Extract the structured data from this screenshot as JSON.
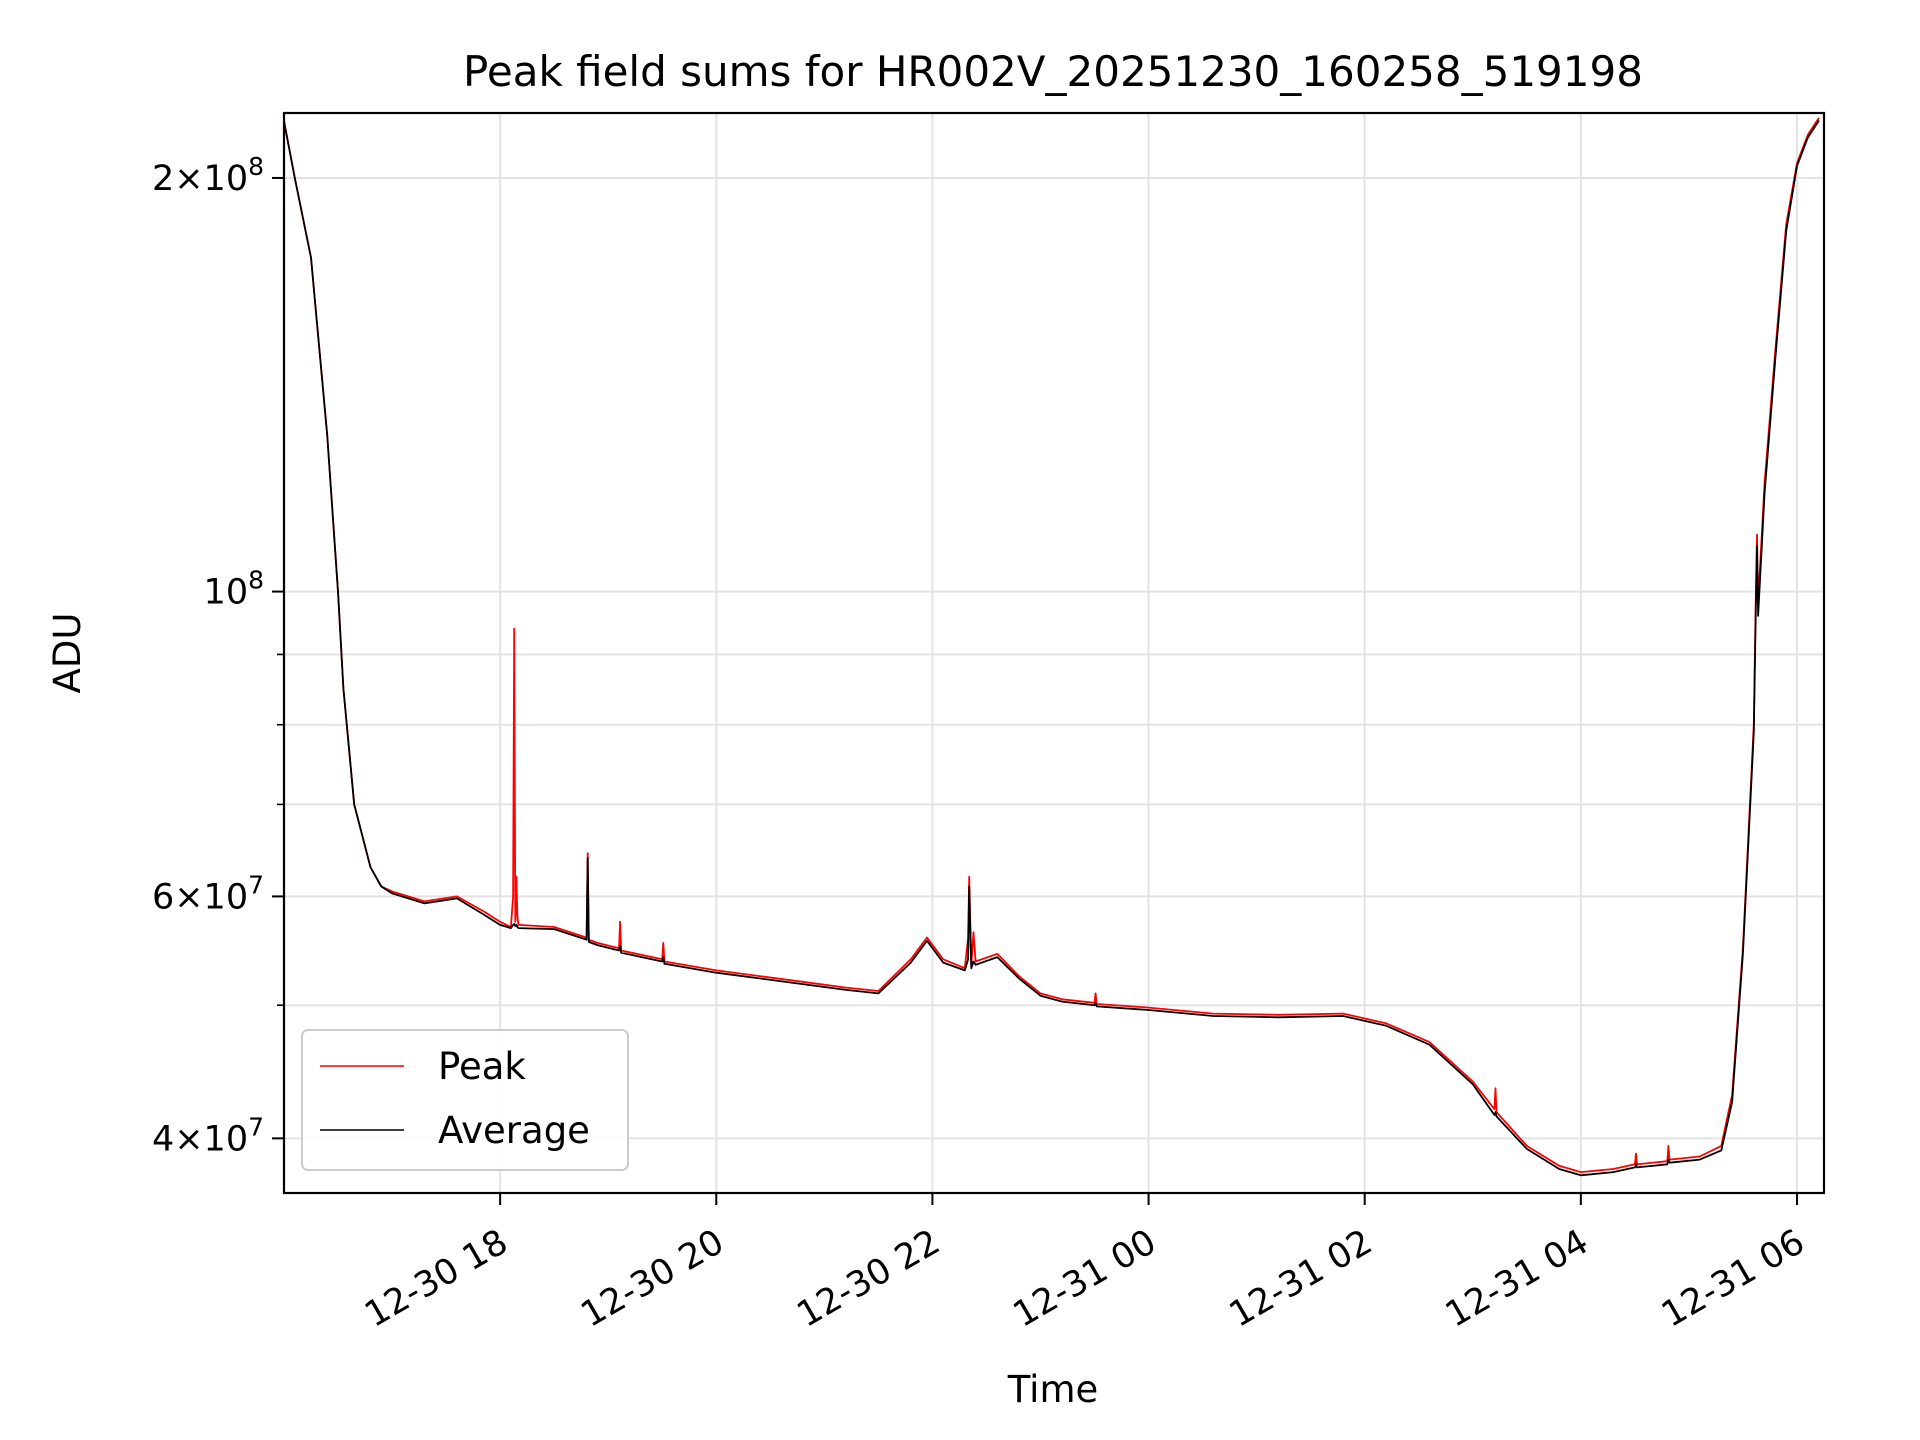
{
  "chart_data": {
    "type": "line",
    "title": "Peak field sums for HR002V_20251230_160258_519198",
    "xlabel": "Time",
    "ylabel": "ADU",
    "yscale": "log",
    "xlim": [
      16.0,
      30.25
    ],
    "ylim": [
      36500000,
      223000000
    ],
    "grid": true,
    "legend_loc": "lower-left",
    "x_ticks": [
      {
        "value": 18,
        "label": "12-30 18"
      },
      {
        "value": 20,
        "label": "12-30 20"
      },
      {
        "value": 22,
        "label": "12-30 22"
      },
      {
        "value": 24,
        "label": "12-31 00"
      },
      {
        "value": 26,
        "label": "12-31 02"
      },
      {
        "value": 28,
        "label": "12-31 04"
      },
      {
        "value": 30,
        "label": "12-31 06"
      }
    ],
    "y_ticks": [
      {
        "value": 40000000,
        "base": "4",
        "mult": "×",
        "exp_base": "10",
        "exp": "7"
      },
      {
        "value": 60000000,
        "base": "6",
        "mult": "×",
        "exp_base": "10",
        "exp": "7"
      },
      {
        "value": 100000000,
        "base": "",
        "mult": "",
        "exp_base": "10",
        "exp": "8"
      },
      {
        "value": 200000000,
        "base": "2",
        "mult": "×",
        "exp_base": "10",
        "exp": "8"
      }
    ],
    "y_minor_ticks": [
      50000000,
      70000000,
      80000000,
      90000000
    ],
    "series": [
      {
        "name": "Peak",
        "color": "#ff0000",
        "x": [
          16.0,
          16.1,
          16.25,
          16.4,
          16.5,
          16.55,
          16.65,
          16.8,
          16.9,
          17.0,
          17.3,
          17.6,
          17.85,
          18.0,
          18.1,
          18.12,
          18.13,
          18.14,
          18.15,
          18.16,
          18.17,
          18.5,
          18.8,
          18.81,
          18.82,
          18.9,
          19.1,
          19.11,
          19.12,
          19.5,
          19.51,
          19.52,
          20.0,
          20.4,
          20.8,
          21.2,
          21.5,
          21.8,
          21.95,
          22.1,
          22.3,
          22.33,
          22.34,
          22.36,
          22.38,
          22.4,
          22.6,
          22.8,
          23.0,
          23.2,
          23.5,
          23.51,
          23.52,
          24.0,
          24.6,
          25.2,
          25.8,
          26.2,
          26.6,
          27.0,
          27.2,
          27.21,
          27.22,
          27.5,
          27.8,
          28.0,
          28.3,
          28.5,
          28.51,
          28.52,
          28.8,
          28.81,
          28.82,
          29.1,
          29.3,
          29.4,
          29.5,
          29.6,
          29.62,
          29.63,
          29.64,
          29.7,
          29.8,
          29.9,
          30.0,
          30.1,
          30.2
        ],
        "y": [
          220000000,
          200000000,
          175000000,
          130000000,
          100000000,
          85000000,
          70000000,
          63000000,
          61000000,
          60500000,
          59500000,
          60000000,
          58500000,
          57500000,
          57000000,
          60000000,
          94000000,
          57500000,
          62000000,
          58000000,
          57200000,
          57000000,
          56000000,
          64500000,
          55800000,
          55500000,
          55000000,
          57500000,
          54800000,
          54000000,
          55500000,
          53800000,
          53000000,
          52500000,
          52000000,
          51500000,
          51200000,
          54000000,
          56000000,
          54000000,
          53200000,
          56000000,
          62000000,
          53500000,
          56500000,
          53800000,
          54500000,
          52500000,
          51000000,
          50500000,
          50200000,
          51000000,
          50100000,
          49800000,
          49300000,
          49200000,
          49300000,
          48500000,
          47000000,
          44000000,
          42000000,
          43500000,
          41800000,
          39500000,
          38200000,
          37800000,
          38000000,
          38300000,
          39000000,
          38300000,
          38500000,
          39500000,
          38600000,
          38800000,
          39500000,
          43000000,
          55000000,
          80000000,
          100000000,
          110000000,
          98000000,
          120000000,
          150000000,
          185000000,
          205000000,
          215000000,
          221000000
        ]
      },
      {
        "name": "Average",
        "color": "#000000",
        "x": [
          16.0,
          16.1,
          16.25,
          16.4,
          16.5,
          16.55,
          16.65,
          16.8,
          16.9,
          17.0,
          17.3,
          17.6,
          17.85,
          18.0,
          18.1,
          18.12,
          18.13,
          18.14,
          18.15,
          18.16,
          18.17,
          18.5,
          18.8,
          18.81,
          18.82,
          18.9,
          19.1,
          19.11,
          19.12,
          19.5,
          19.51,
          19.52,
          20.0,
          20.4,
          20.8,
          21.2,
          21.5,
          21.8,
          21.95,
          22.1,
          22.3,
          22.33,
          22.34,
          22.36,
          22.38,
          22.4,
          22.6,
          22.8,
          23.0,
          23.2,
          23.5,
          23.51,
          23.52,
          24.0,
          24.6,
          25.2,
          25.8,
          26.2,
          26.6,
          27.0,
          27.2,
          27.21,
          27.22,
          27.5,
          27.8,
          28.0,
          28.3,
          28.5,
          28.51,
          28.52,
          28.8,
          28.81,
          28.82,
          29.1,
          29.3,
          29.4,
          29.5,
          29.6,
          29.62,
          29.63,
          29.64,
          29.7,
          29.8,
          29.9,
          30.0,
          30.1,
          30.2
        ],
        "y": [
          220000000,
          200000000,
          175000000,
          130000000,
          100000000,
          85000000,
          70000000,
          63000000,
          61000000,
          60300000,
          59300000,
          59800000,
          58200000,
          57200000,
          56900000,
          57200000,
          57300000,
          57100000,
          57200000,
          57000000,
          56900000,
          56800000,
          55800000,
          64000000,
          55600000,
          55300000,
          54800000,
          55200000,
          54600000,
          53800000,
          54200000,
          53600000,
          52800000,
          52300000,
          51800000,
          51300000,
          51000000,
          53700000,
          55700000,
          53700000,
          53000000,
          54000000,
          61000000,
          53200000,
          53800000,
          53500000,
          54200000,
          52300000,
          50800000,
          50300000,
          50000000,
          50200000,
          49900000,
          49600000,
          49100000,
          49000000,
          49100000,
          48300000,
          46800000,
          43800000,
          41600000,
          41800000,
          41500000,
          39300000,
          38000000,
          37600000,
          37800000,
          38100000,
          38300000,
          38100000,
          38300000,
          38600000,
          38400000,
          38600000,
          39200000,
          42500000,
          54500000,
          79000000,
          98000000,
          108000000,
          96000000,
          118000000,
          148000000,
          183000000,
          204000000,
          214000000,
          220000000
        ]
      }
    ]
  }
}
